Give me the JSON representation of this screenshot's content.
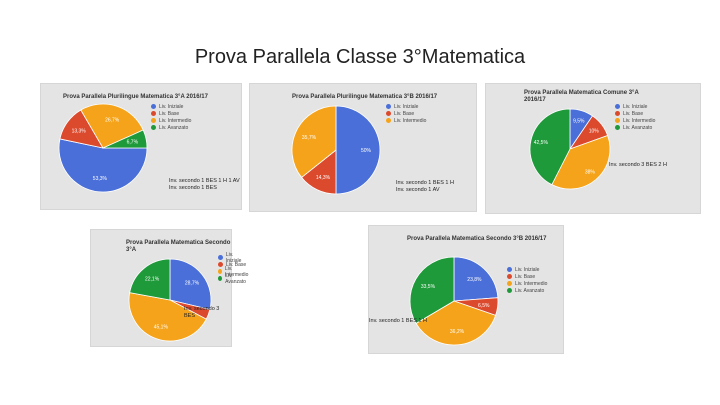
{
  "slide": {
    "title": "Prova Parallela Classe 3°Matematica"
  },
  "legend_labels": [
    "Liv. Iniziale",
    "Liv. Base",
    "Liv. Intermedio",
    "Liv. Avanzato"
  ],
  "colors": {
    "iniziale": "#4a6fd9",
    "base": "#dc4a2e",
    "intermedio": "#f5a31a",
    "avanzato": "#1f9a3a"
  },
  "chart_data": [
    {
      "type": "pie",
      "title": "Prova Parallela Plurilingue Matematica 3°A 2016/17",
      "labels": [
        "Liv. Iniziale",
        "Liv. Base",
        "Liv. Intermedio",
        "Liv. Avanzato"
      ],
      "values": [
        53.3,
        13.3,
        26.7,
        6.7
      ],
      "value_labels": [
        "53,3%",
        "13,3%",
        "26,7%",
        "6,7%"
      ],
      "note": "Inv. secondo 1 BES 1 H 1 AV\nInv. secondo 1 BES"
    },
    {
      "type": "pie",
      "title": "Prova Parallela Plurilingue Matematica 3°B 2016/17",
      "labels": [
        "Liv. Iniziale",
        "Liv. Base",
        "Liv. Intermedio"
      ],
      "values": [
        50.0,
        14.3,
        35.7
      ],
      "value_labels": [
        "50%",
        "14,3%",
        "35,7%"
      ],
      "note": "Inv. secondo 1 BES 1 H\nInv. secondo 1 AV"
    },
    {
      "type": "pie",
      "title": "Prova Parallela Matematica Comune 3°A 2016/17",
      "labels": [
        "Liv. Iniziale",
        "Liv. Base",
        "Liv. Intermedio",
        "Liv. Avanzato"
      ],
      "values": [
        9.5,
        10.0,
        38.0,
        42.5
      ],
      "value_labels": [
        "9,5%",
        "10%",
        "38%",
        "42,5%"
      ],
      "note": "Inv. secondo 3 BES 2 H"
    },
    {
      "type": "pie",
      "title": "Prova Parallela Matematica Secondo 3°A",
      "labels": [
        "Liv. Iniziale",
        "Liv. Base",
        "Liv. Intermedio",
        "Liv. Avanzato"
      ],
      "values": [
        28.7,
        4.0,
        45.1,
        22.1
      ],
      "value_labels": [
        "28,7%",
        "",
        "45,1%",
        "22,1%"
      ],
      "note": "Inv. secondo 3 BES"
    },
    {
      "type": "pie",
      "title": "Prova Parallela Matematica Secondo 3°B 2016/17",
      "labels": [
        "Liv. Iniziale",
        "Liv. Base",
        "Liv. Intermedio",
        "Liv. Avanzato"
      ],
      "values": [
        23.8,
        6.5,
        36.2,
        33.5
      ],
      "value_labels": [
        "23,8%",
        "6,5%",
        "36,2%",
        "33,5%"
      ],
      "note": "Inv. secondo 1 BES 1 H"
    }
  ]
}
